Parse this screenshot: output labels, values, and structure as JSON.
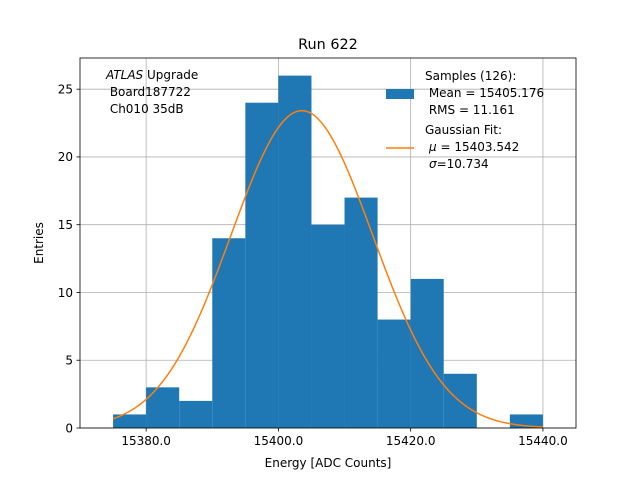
{
  "chart_data": {
    "type": "bar",
    "title": "Run 622",
    "xlabel": "Energy [ADC Counts]",
    "ylabel": "Entries",
    "xlim": [
      15370,
      15445
    ],
    "ylim": [
      0,
      27.3
    ],
    "grid": true,
    "bin_width": 5,
    "histogram": {
      "bin_edges": [
        15375,
        15380,
        15385,
        15390,
        15395,
        15400,
        15405,
        15410,
        15415,
        15420,
        15425,
        15430,
        15435,
        15440
      ],
      "counts": [
        1,
        3,
        2,
        14,
        24,
        26,
        15,
        17,
        8,
        11,
        4,
        0,
        1
      ]
    },
    "fit": {
      "name": "Gaussian Fit:",
      "type": "gaussian",
      "mu": 15403.542,
      "sigma": 10.734,
      "x_range": [
        15375,
        15440
      ]
    },
    "x_ticks": [
      {
        "value": 15380,
        "label": "15380.0"
      },
      {
        "value": 15400,
        "label": "15400.0"
      },
      {
        "value": 15420,
        "label": "15420.0"
      },
      {
        "value": 15440,
        "label": "15440.0"
      }
    ],
    "y_ticks": [
      {
        "value": 0,
        "label": "0"
      },
      {
        "value": 5,
        "label": "5"
      },
      {
        "value": 10,
        "label": "10"
      },
      {
        "value": 15,
        "label": "15"
      },
      {
        "value": 20,
        "label": "20"
      },
      {
        "value": 25,
        "label": "25"
      }
    ],
    "annotation": {
      "atlas": "ATLAS",
      "upgrade": " Upgrade",
      "board": " Board187722",
      "channel": " Ch010 35dB"
    },
    "legend": {
      "placement": "top-right",
      "samples_title": "Samples (126):",
      "samples_mean": " Mean = 15405.176",
      "samples_rms": " RMS = 11.161",
      "fit_title": "Gaussian Fit:",
      "fit_mu_symbol": "μ",
      "fit_mu_value": " = 15403.542",
      "fit_sigma_symbol": "σ",
      "fit_sigma_value": "=10.734"
    },
    "colors": {
      "bars": "#1f77b4",
      "fit_line": "#ff7f0e",
      "grid": "#b0b0b0"
    }
  }
}
